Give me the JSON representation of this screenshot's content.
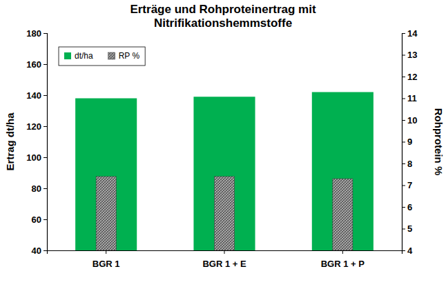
{
  "chart_data": {
    "type": "bar",
    "title": "Erträge und Rohproteinertrag mit Nitrifikationshemmstoffe",
    "ylabel": "Ertrag dt/ha",
    "y2label": "Rohprotein %",
    "categories": [
      "BGR 1",
      "BGR 1 + E",
      "BGR 1 + P"
    ],
    "series": [
      {
        "name": "dt/ha",
        "color": "#00b050",
        "values": [
          138,
          139,
          142
        ]
      },
      {
        "name": "RP %",
        "color": "#a6a6a6",
        "values": [
          7.4,
          7.4,
          7.3
        ],
        "axis": "y2"
      }
    ],
    "ylim": [
      40,
      180
    ],
    "yticks": [
      40,
      60,
      80,
      100,
      120,
      140,
      160,
      180
    ],
    "y2lim": [
      4,
      14
    ],
    "y2ticks": [
      4,
      5,
      6,
      7,
      8,
      9,
      10,
      11,
      12,
      13,
      14
    ],
    "grid": false,
    "legend": "upper left"
  }
}
